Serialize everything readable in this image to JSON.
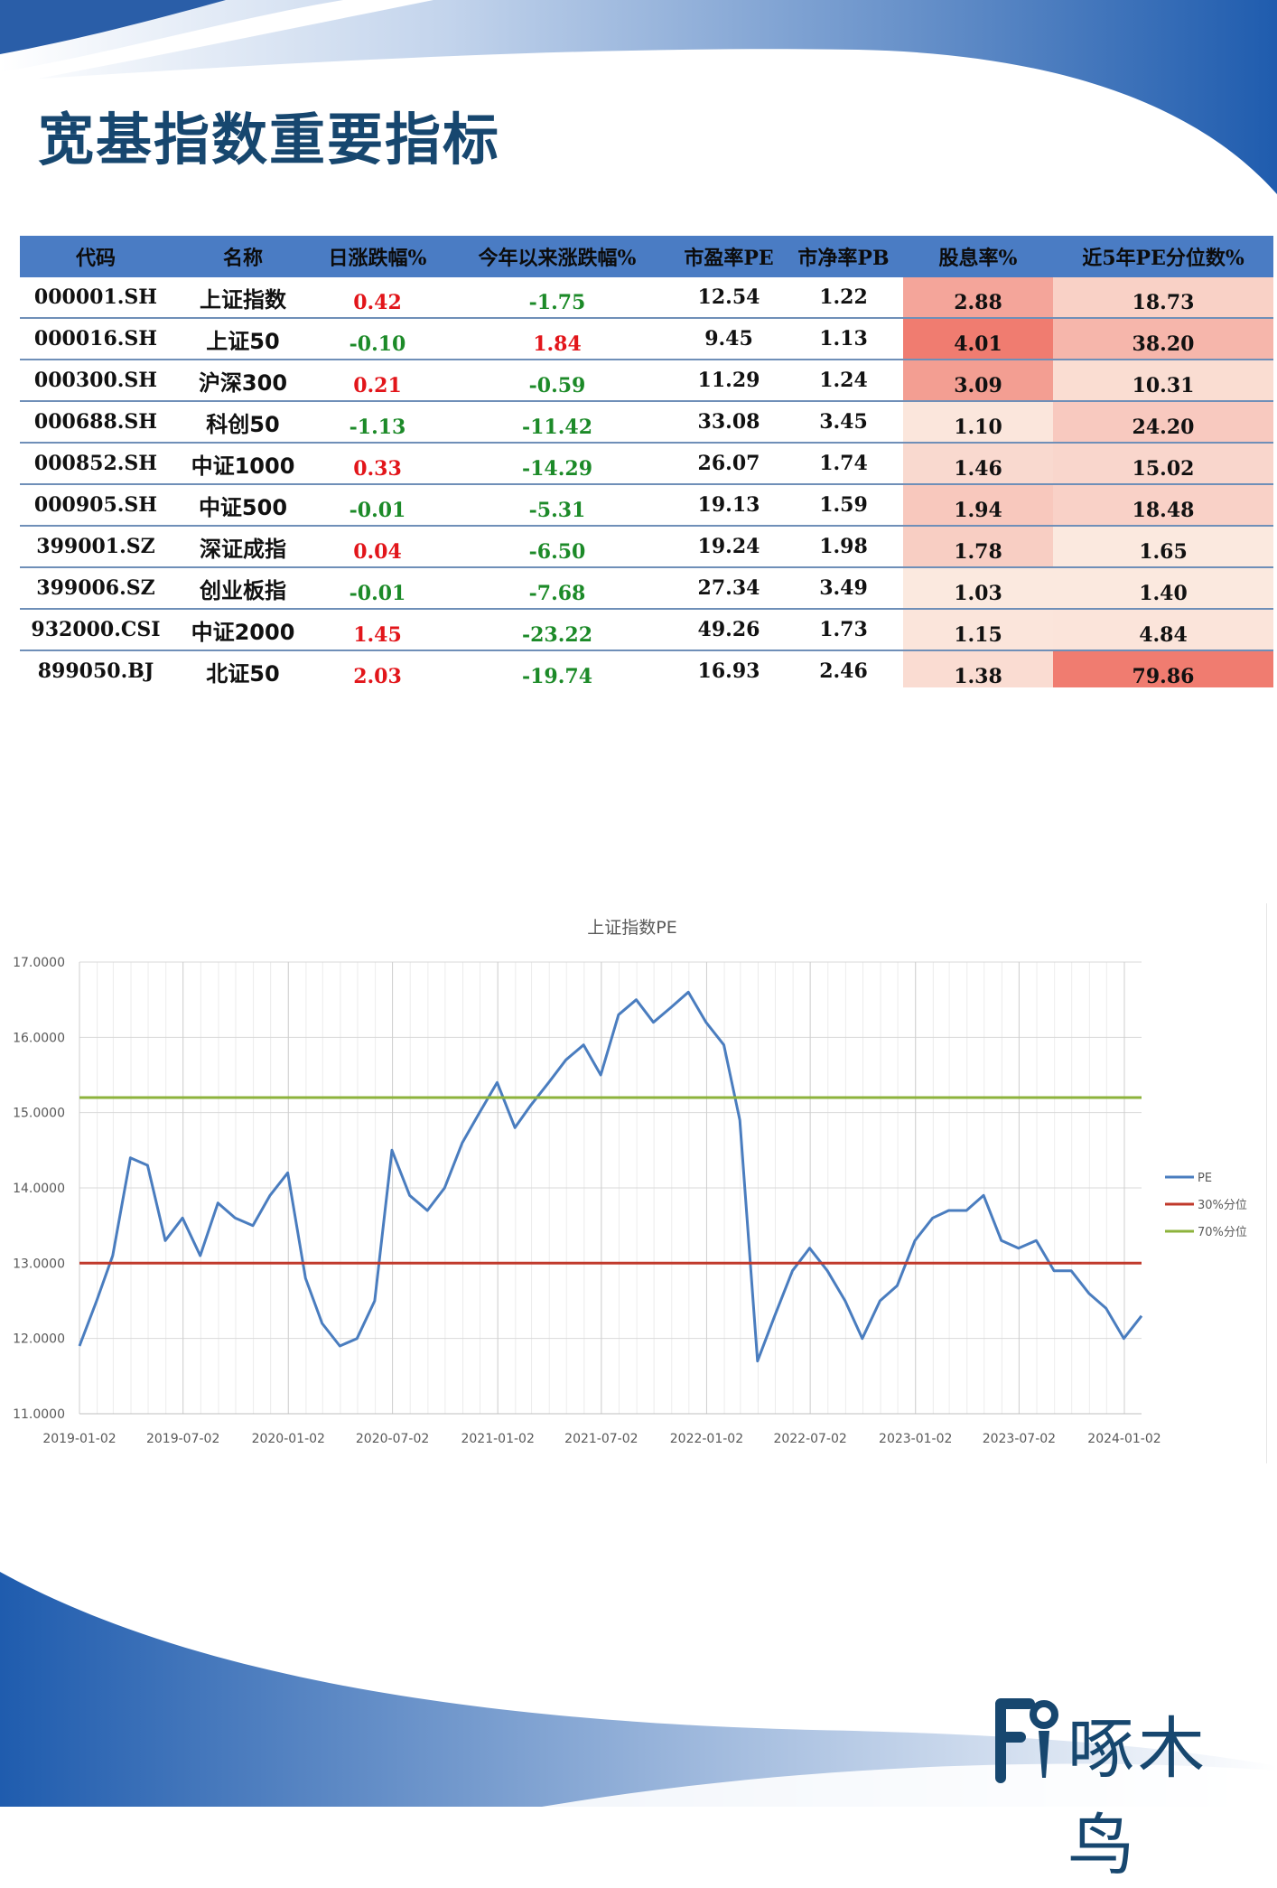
{
  "page_title": "宽基指数重要指标",
  "table": {
    "headers": [
      "代码",
      "名称",
      "日涨跌幅%",
      "今年以来涨跌幅%",
      "市盈率PE",
      "市净率PB",
      "股息率%",
      "近5年PE分位数%"
    ],
    "rows": [
      {
        "code": "000001.SH",
        "name": "上证指数",
        "daily": "0.42",
        "ytd": "-1.75",
        "pe": "12.54",
        "pb": "1.22",
        "div": "2.88",
        "pct": "18.73"
      },
      {
        "code": "000016.SH",
        "name": "上证50",
        "daily": "-0.10",
        "ytd": "1.84",
        "pe": "9.45",
        "pb": "1.13",
        "div": "4.01",
        "pct": "38.20"
      },
      {
        "code": "000300.SH",
        "name": "沪深300",
        "daily": "0.21",
        "ytd": "-0.59",
        "pe": "11.29",
        "pb": "1.24",
        "div": "3.09",
        "pct": "10.31"
      },
      {
        "code": "000688.SH",
        "name": "科创50",
        "daily": "-1.13",
        "ytd": "-11.42",
        "pe": "33.08",
        "pb": "3.45",
        "div": "1.10",
        "pct": "24.20"
      },
      {
        "code": "000852.SH",
        "name": "中证1000",
        "daily": "0.33",
        "ytd": "-14.29",
        "pe": "26.07",
        "pb": "1.74",
        "div": "1.46",
        "pct": "15.02"
      },
      {
        "code": "000905.SH",
        "name": "中证500",
        "daily": "-0.01",
        "ytd": "-5.31",
        "pe": "19.13",
        "pb": "1.59",
        "div": "1.94",
        "pct": "18.48"
      },
      {
        "code": "399001.SZ",
        "name": "深证成指",
        "daily": "0.04",
        "ytd": "-6.50",
        "pe": "19.24",
        "pb": "1.98",
        "div": "1.78",
        "pct": "1.65"
      },
      {
        "code": "399006.SZ",
        "name": "创业板指",
        "daily": "-0.01",
        "ytd": "-7.68",
        "pe": "27.34",
        "pb": "3.49",
        "div": "1.03",
        "pct": "1.40"
      },
      {
        "code": "932000.CSI",
        "name": "中证2000",
        "daily": "1.45",
        "ytd": "-23.22",
        "pe": "49.26",
        "pb": "1.73",
        "div": "1.15",
        "pct": "4.84"
      },
      {
        "code": "899050.BJ",
        "name": "北证50",
        "daily": "2.03",
        "ytd": "-19.74",
        "pe": "16.93",
        "pb": "2.46",
        "div": "1.38",
        "pct": "79.86"
      }
    ],
    "colors": {
      "header_bg": "#4a7cc4",
      "positive": "#e2151a",
      "negative": "#1c8a28",
      "heat_low": "#fbe9df",
      "heat_high": "#f07c70"
    }
  },
  "chart_data": {
    "type": "line",
    "title": "上证指数PE",
    "x_tick_labels": [
      "2019-01-02",
      "2019-07-02",
      "2020-01-02",
      "2020-07-02",
      "2021-01-02",
      "2021-07-02",
      "2022-01-02",
      "2022-07-02",
      "2023-01-02",
      "2023-07-02",
      "2024-01-02"
    ],
    "y_tick_labels": [
      "11.0000",
      "12.0000",
      "13.0000",
      "14.0000",
      "15.0000",
      "16.0000",
      "17.0000"
    ],
    "ylim": [
      11,
      17
    ],
    "grid": true,
    "legend_position": "right",
    "series": [
      {
        "name": "PE",
        "color": "#4a7dbf",
        "x": [
          "2019-01-02",
          "2019-02-01",
          "2019-03-01",
          "2019-04-01",
          "2019-05-01",
          "2019-06-01",
          "2019-07-01",
          "2019-08-01",
          "2019-09-01",
          "2019-10-01",
          "2019-11-01",
          "2019-12-01",
          "2020-01-01",
          "2020-02-01",
          "2020-03-01",
          "2020-04-01",
          "2020-05-01",
          "2020-06-01",
          "2020-07-01",
          "2020-08-01",
          "2020-09-01",
          "2020-10-01",
          "2020-11-01",
          "2020-12-01",
          "2021-01-01",
          "2021-02-01",
          "2021-03-01",
          "2021-04-01",
          "2021-05-01",
          "2021-06-01",
          "2021-07-01",
          "2021-08-01",
          "2021-09-01",
          "2021-10-01",
          "2021-11-01",
          "2021-12-01",
          "2022-01-01",
          "2022-02-01",
          "2022-03-01",
          "2022-04-01",
          "2022-05-01",
          "2022-06-01",
          "2022-07-01",
          "2022-08-01",
          "2022-09-01",
          "2022-10-01",
          "2022-11-01",
          "2022-12-01",
          "2023-01-01",
          "2023-02-01",
          "2023-03-01",
          "2023-04-01",
          "2023-05-01",
          "2023-06-01",
          "2023-07-01",
          "2023-08-01",
          "2023-09-01",
          "2023-10-01",
          "2023-11-01",
          "2023-12-01",
          "2024-01-01",
          "2024-02-01"
        ],
        "values": [
          11.9,
          12.5,
          13.1,
          14.4,
          14.3,
          13.3,
          13.6,
          13.1,
          13.8,
          13.6,
          13.5,
          13.9,
          14.2,
          12.8,
          12.2,
          11.9,
          12.0,
          12.5,
          14.5,
          13.9,
          13.7,
          14.0,
          14.6,
          15.0,
          15.4,
          14.8,
          15.1,
          15.4,
          15.7,
          15.9,
          15.5,
          16.3,
          16.5,
          16.2,
          16.4,
          16.6,
          16.2,
          15.9,
          14.9,
          11.7,
          12.3,
          12.9,
          13.2,
          12.9,
          12.5,
          12.0,
          12.5,
          12.7,
          13.3,
          13.6,
          13.7,
          13.7,
          13.9,
          13.3,
          13.2,
          13.3,
          12.9,
          12.9,
          12.6,
          12.4,
          12.0,
          12.3
        ]
      },
      {
        "name": "30%分位",
        "color": "#c0392b",
        "x": [
          "2019-01-02",
          "2024-02-01"
        ],
        "values": [
          13.0,
          13.0
        ]
      },
      {
        "name": "70%分位",
        "color": "#8db33c",
        "x": [
          "2019-01-02",
          "2024-02-01"
        ],
        "values": [
          15.2,
          15.2
        ]
      }
    ]
  },
  "logo": {
    "text": "啄木鸟"
  }
}
